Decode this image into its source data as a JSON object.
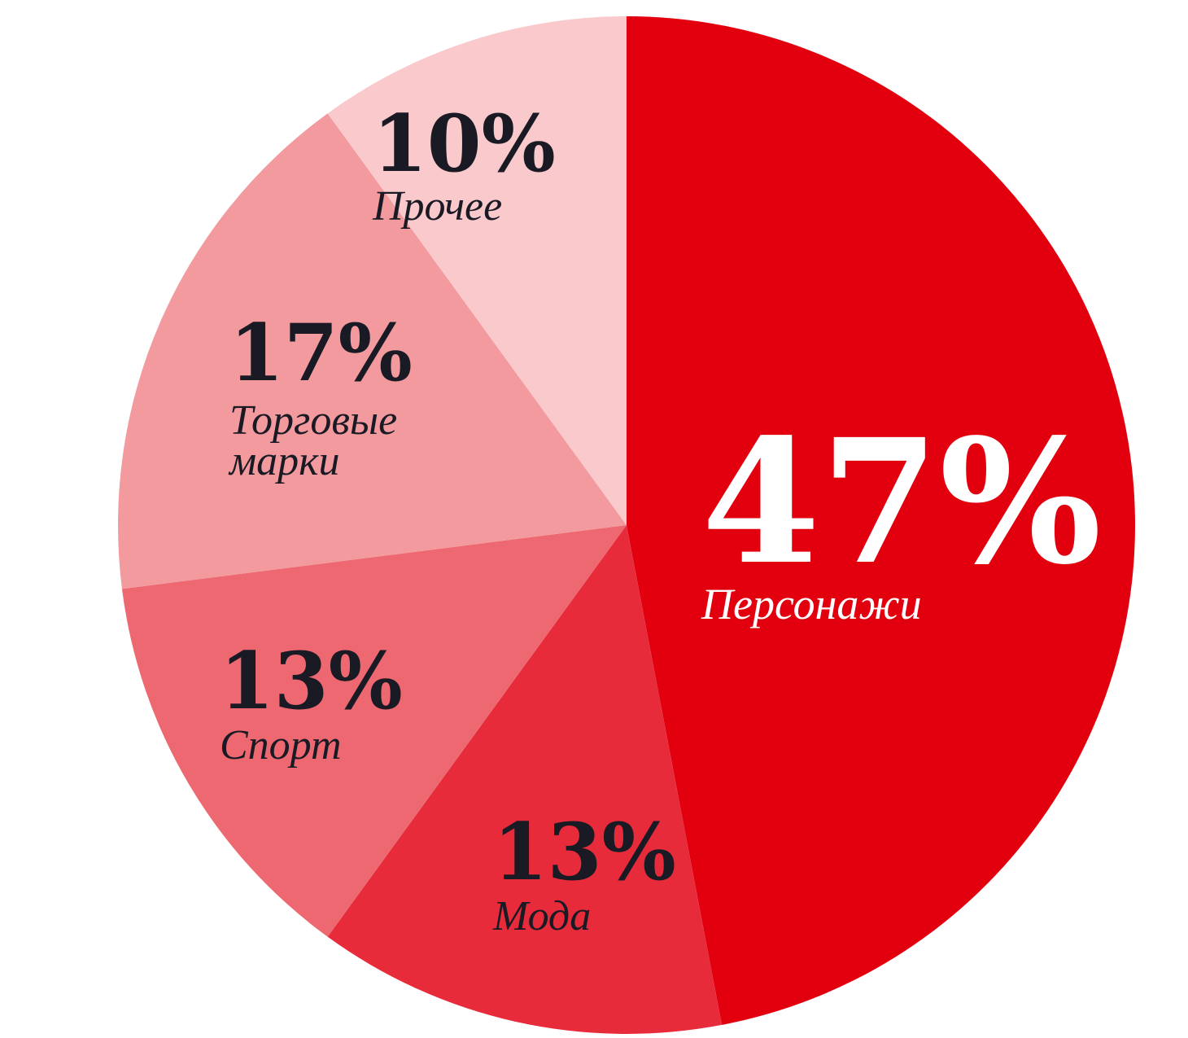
{
  "colors": {
    "background": "#ffffff",
    "dark_text": "#1a1a24",
    "light_text": "#ffffff"
  },
  "chart_data": {
    "type": "pie",
    "title": "",
    "start_angle_deg": 0,
    "direction": "clockwise",
    "legend": "none",
    "slices": [
      {
        "value": 47,
        "pct_label": "47%",
        "label_lines": [
          "Персонажи"
        ],
        "color": "#e2000f",
        "label_color": "#ffffff"
      },
      {
        "value": 13,
        "pct_label": "13%",
        "label_lines": [
          "Мода"
        ],
        "color": "#e72b3a",
        "label_color": "#1a1a24"
      },
      {
        "value": 13,
        "pct_label": "13%",
        "label_lines": [
          "Спорт"
        ],
        "color": "#ed6870",
        "label_color": "#1a1a24"
      },
      {
        "value": 17,
        "pct_label": "17%",
        "label_lines": [
          "Торговые",
          "марки"
        ],
        "color": "#f29a9e",
        "label_color": "#1a1a24"
      },
      {
        "value": 10,
        "pct_label": "10%",
        "label_lines": [
          "Прочее"
        ],
        "color": "#f9c9cc",
        "label_color": "#1a1a24"
      }
    ]
  }
}
